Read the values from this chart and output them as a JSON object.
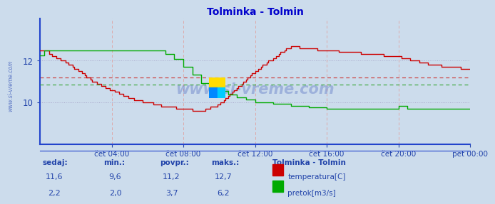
{
  "title": "Tolminka - Tolmin",
  "title_color": "#0000cc",
  "bg_color": "#ccdcec",
  "plot_bg_color": "#ccdcec",
  "temp_color": "#cc0000",
  "flow_color": "#00aa00",
  "axis_color": "#2244aa",
  "tick_color": "#2244aa",
  "watermark_color": "#1133aa",
  "grid_h_color": "#aaaacc",
  "grid_v_color": "#ddaaaa",
  "avg_temp_color": "#cc4444",
  "avg_flow_color": "#44aa44",
  "spine_bottom_color": "#2244cc",
  "spine_left_color": "#2244cc",
  "temp_avg": 11.2,
  "temp_min": 9.6,
  "temp_max": 12.7,
  "temp_current": 11.6,
  "flow_avg": 3.7,
  "flow_min": 2.0,
  "flow_max": 6.2,
  "flow_current": 2.2,
  "temp_ylim": [
    8.0,
    14.0
  ],
  "flow_ylim": [
    0.0,
    7.778
  ],
  "temp_yticks": [
    10,
    12
  ],
  "x_tick_positions": [
    4,
    8,
    12,
    16,
    20,
    24
  ],
  "x_ticks_labels": [
    "čet 04:00",
    "čet 08:00",
    "čet 12:00",
    "čet 16:00",
    "čet 20:00",
    "pet 00:00"
  ],
  "n_points": 289,
  "legend_title": "Tolminka - Tolmin",
  "label_sedaj": "sedaj:",
  "label_min": "min.:",
  "label_povpr": "povpr.:",
  "label_maks": "maks.:",
  "label_temp": "temperatura[C]",
  "label_flow": "pretok[m3/s]",
  "watermark": "www.si-vreme.com"
}
